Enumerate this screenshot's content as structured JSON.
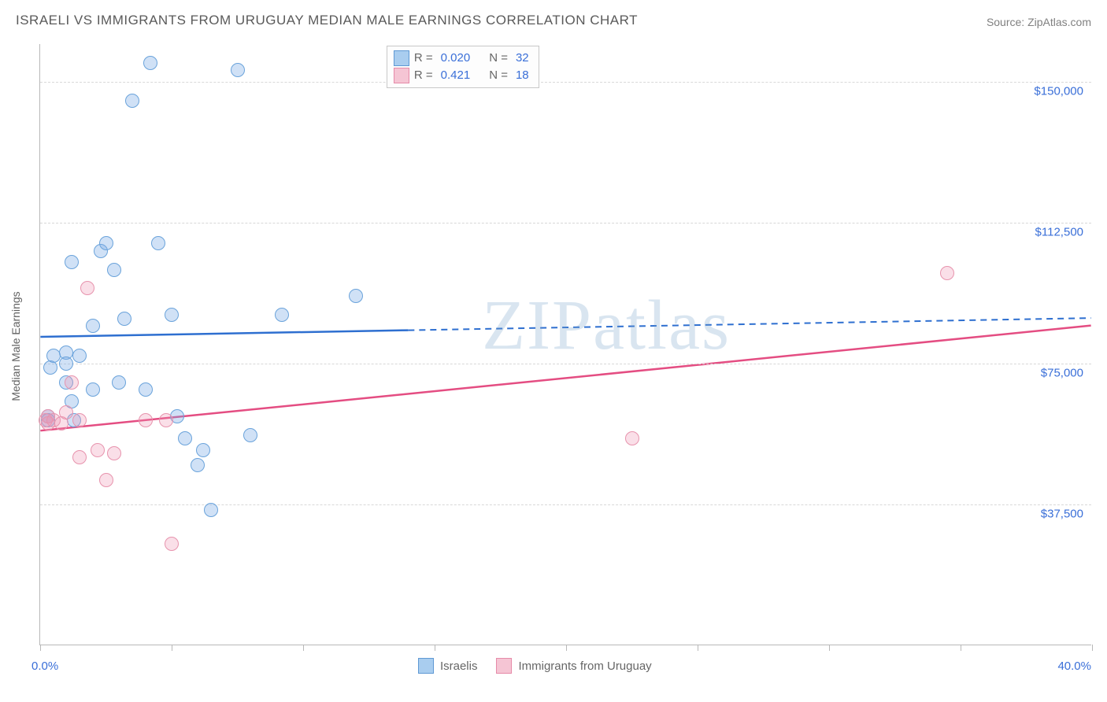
{
  "title": "ISRAELI VS IMMIGRANTS FROM URUGUAY MEDIAN MALE EARNINGS CORRELATION CHART",
  "source_prefix": "Source: ",
  "source_name": "ZipAtlas.com",
  "ylabel": "Median Male Earnings",
  "watermark": "ZIPatlas",
  "chart": {
    "type": "scatter",
    "background_color": "#ffffff",
    "grid_color": "#d8d8d8",
    "axis_color": "#b8b8b8",
    "label_color": "#3a6fd8",
    "title_color": "#5a5a5a",
    "marker_radius": 9,
    "xlim": [
      0,
      40
    ],
    "ylim": [
      0,
      160000
    ],
    "x_ticks": [
      0,
      5,
      10,
      15,
      20,
      25,
      30,
      35,
      40
    ],
    "x_tick_labels_shown": {
      "0": "0.0%",
      "40": "40.0%"
    },
    "y_gridlines": [
      37500,
      75000,
      112500,
      150000
    ],
    "y_tick_labels": [
      "$37,500",
      "$75,000",
      "$112,500",
      "$150,000"
    ],
    "series": [
      {
        "id": "israelis",
        "label": "Israelis",
        "fill_color": "rgba(120,170,230,0.35)",
        "stroke_color": "#6aa3db",
        "swatch_fill": "#a9cdef",
        "swatch_border": "#5f99d4",
        "R": "0.020",
        "N": "32",
        "regression": {
          "x1": 0,
          "y1": 82000,
          "x2": 40,
          "y2": 87000,
          "solid_until_x": 14,
          "color": "#2e6fd0",
          "width": 2.5
        },
        "points": [
          [
            0.3,
            61000
          ],
          [
            0.3,
            60000
          ],
          [
            0.4,
            74000
          ],
          [
            0.5,
            77000
          ],
          [
            1.0,
            70000
          ],
          [
            1.0,
            78000
          ],
          [
            1.0,
            75000
          ],
          [
            1.2,
            102000
          ],
          [
            1.2,
            65000
          ],
          [
            1.3,
            60000
          ],
          [
            1.5,
            77000
          ],
          [
            2.0,
            68000
          ],
          [
            2.0,
            85000
          ],
          [
            2.3,
            105000
          ],
          [
            2.5,
            107000
          ],
          [
            2.8,
            100000
          ],
          [
            3.0,
            70000
          ],
          [
            3.2,
            87000
          ],
          [
            3.5,
            145000
          ],
          [
            4.0,
            68000
          ],
          [
            4.2,
            155000
          ],
          [
            4.5,
            107000
          ],
          [
            5.0,
            88000
          ],
          [
            5.2,
            61000
          ],
          [
            5.5,
            55000
          ],
          [
            6.0,
            48000
          ],
          [
            6.2,
            52000
          ],
          [
            6.5,
            36000
          ],
          [
            7.5,
            153000
          ],
          [
            8.0,
            56000
          ],
          [
            9.2,
            88000
          ],
          [
            12.0,
            93000
          ]
        ]
      },
      {
        "id": "uruguay",
        "label": "Immigrants from Uruguay",
        "fill_color": "rgba(240,150,180,0.30)",
        "stroke_color": "#e793ad",
        "swatch_fill": "#f5c5d4",
        "swatch_border": "#e68aa8",
        "R": "0.421",
        "N": "18",
        "regression": {
          "x1": 0,
          "y1": 57000,
          "x2": 40,
          "y2": 85000,
          "solid_until_x": 40,
          "color": "#e44d82",
          "width": 2.5
        },
        "points": [
          [
            0.2,
            60000
          ],
          [
            0.3,
            61000
          ],
          [
            0.3,
            59000
          ],
          [
            0.5,
            60000
          ],
          [
            0.8,
            59000
          ],
          [
            1.0,
            62000
          ],
          [
            1.2,
            70000
          ],
          [
            1.5,
            60000
          ],
          [
            1.5,
            50000
          ],
          [
            1.8,
            95000
          ],
          [
            2.2,
            52000
          ],
          [
            2.5,
            44000
          ],
          [
            2.8,
            51000
          ],
          [
            4.0,
            60000
          ],
          [
            4.8,
            60000
          ],
          [
            5.0,
            27000
          ],
          [
            22.5,
            55000
          ],
          [
            34.5,
            99000
          ]
        ]
      }
    ]
  },
  "legend_top": {
    "R_label": "R =",
    "N_label": "N ="
  },
  "legend_bottom": {
    "items": [
      "Israelis",
      "Immigrants from Uruguay"
    ]
  }
}
